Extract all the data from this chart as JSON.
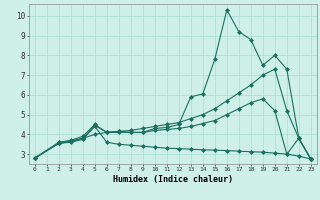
{
  "xlabel": "Humidex (Indice chaleur)",
  "bg_color": "#cef0e8",
  "grid_color": "#a8ddd5",
  "line_color": "#1a7060",
  "xlim": [
    -0.5,
    23.5
  ],
  "ylim": [
    2.5,
    10.6
  ],
  "xticks": [
    0,
    1,
    2,
    3,
    4,
    5,
    6,
    7,
    8,
    9,
    10,
    11,
    12,
    13,
    14,
    15,
    16,
    17,
    18,
    19,
    20,
    21,
    22,
    23
  ],
  "yticks": [
    3,
    4,
    5,
    6,
    7,
    8,
    9,
    10
  ],
  "series": [
    {
      "x": [
        0,
        2,
        3,
        4,
        5,
        6,
        7,
        8,
        9,
        10,
        11,
        12,
        13,
        14,
        15,
        16,
        17,
        18,
        19,
        20,
        21,
        22,
        23
      ],
      "y": [
        2.8,
        3.6,
        3.7,
        3.9,
        4.5,
        4.1,
        4.15,
        4.1,
        4.1,
        4.3,
        4.35,
        4.5,
        5.9,
        6.05,
        7.8,
        10.3,
        9.2,
        8.8,
        7.5,
        8.0,
        7.3,
        3.8,
        2.75
      ]
    },
    {
      "x": [
        0,
        2,
        3,
        4,
        5,
        6,
        7,
        8,
        9,
        10,
        11,
        12,
        13,
        14,
        15,
        16,
        17,
        18,
        19,
        20,
        21,
        22,
        23
      ],
      "y": [
        2.8,
        3.55,
        3.65,
        3.8,
        4.0,
        4.1,
        4.15,
        4.2,
        4.3,
        4.4,
        4.5,
        4.6,
        4.8,
        5.0,
        5.3,
        5.7,
        6.1,
        6.5,
        7.0,
        7.3,
        5.2,
        3.8,
        2.75
      ]
    },
    {
      "x": [
        0,
        2,
        3,
        4,
        5,
        6,
        7,
        8,
        9,
        10,
        11,
        12,
        13,
        14,
        15,
        16,
        17,
        18,
        19,
        20,
        21,
        22,
        23
      ],
      "y": [
        2.8,
        3.55,
        3.65,
        3.8,
        4.45,
        4.1,
        4.1,
        4.1,
        4.1,
        4.2,
        4.25,
        4.3,
        4.4,
        4.55,
        4.7,
        5.0,
        5.3,
        5.6,
        5.8,
        5.2,
        3.0,
        3.8,
        2.75
      ]
    },
    {
      "x": [
        0,
        2,
        3,
        4,
        5,
        6,
        7,
        8,
        9,
        10,
        11,
        12,
        13,
        14,
        15,
        16,
        17,
        18,
        19,
        20,
        21,
        22,
        23
      ],
      "y": [
        2.8,
        3.55,
        3.6,
        3.75,
        4.4,
        3.6,
        3.5,
        3.45,
        3.4,
        3.35,
        3.3,
        3.28,
        3.25,
        3.22,
        3.2,
        3.18,
        3.15,
        3.12,
        3.1,
        3.05,
        3.0,
        2.9,
        2.75
      ]
    }
  ]
}
